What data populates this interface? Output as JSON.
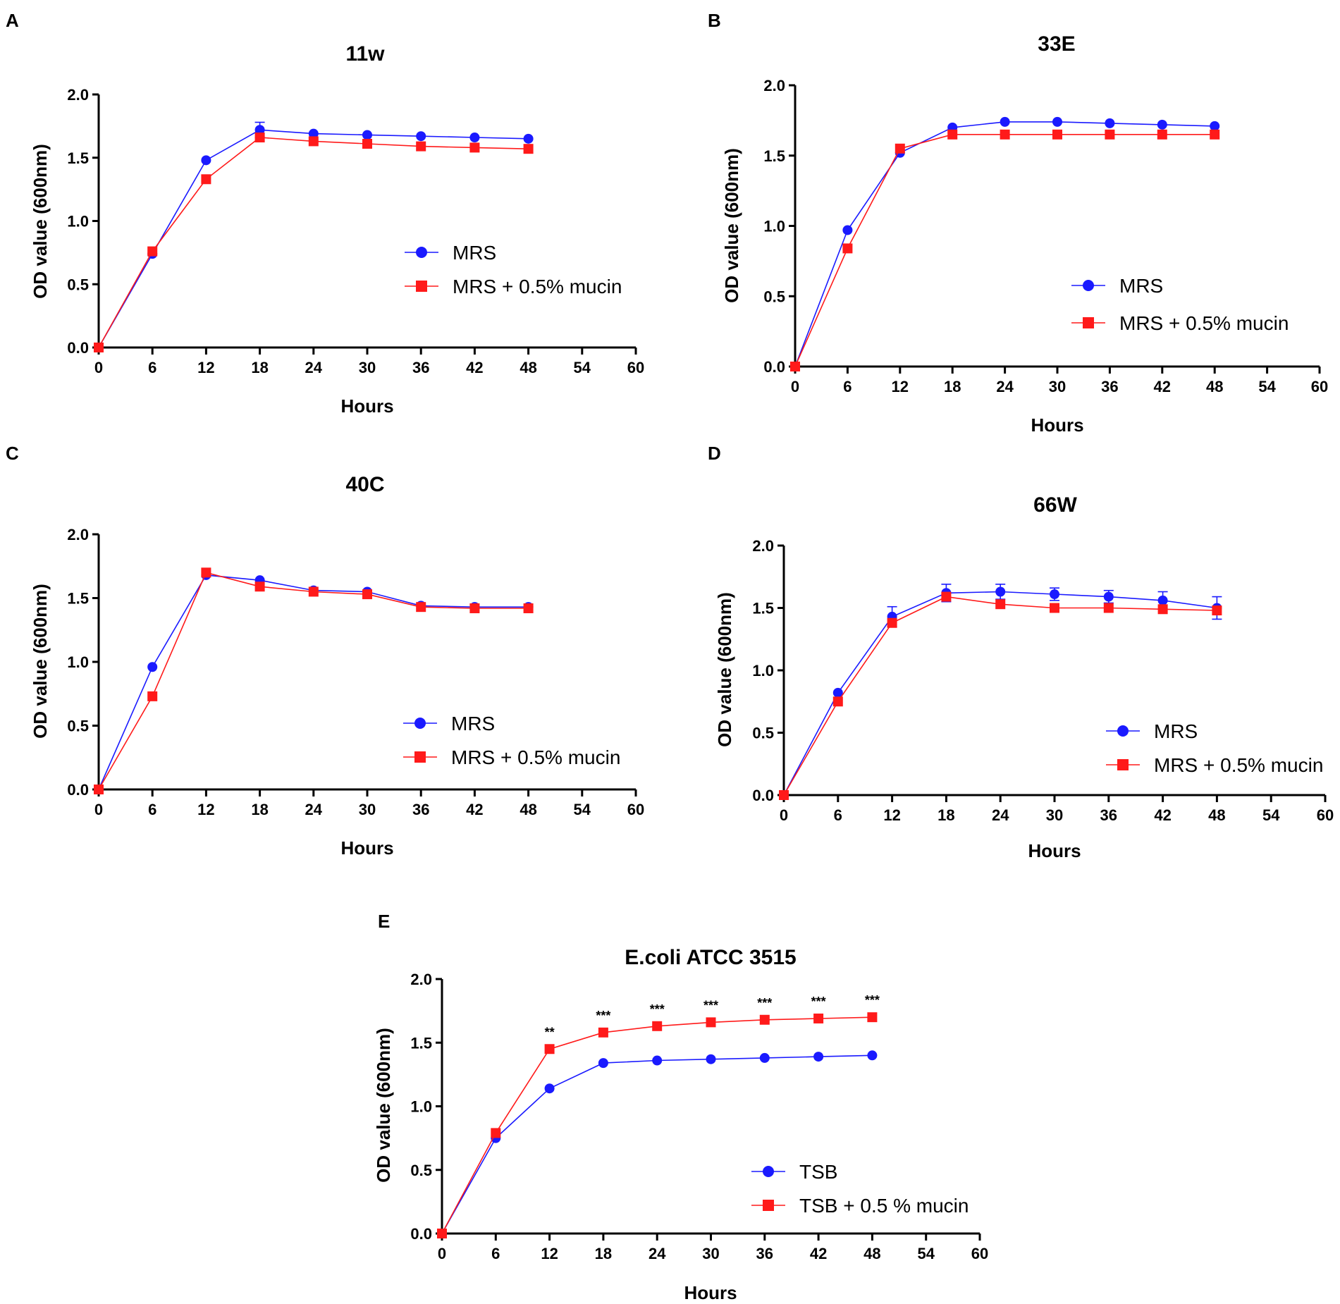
{
  "figure": {
    "panels": [
      "A",
      "B",
      "C",
      "D",
      "E"
    ]
  },
  "chart_data": [
    {
      "panel": "A",
      "type": "line",
      "title": "11w",
      "xlabel": "Hours",
      "ylabel": "OD value (600nm)",
      "xlim": [
        0,
        60
      ],
      "ylim": [
        0,
        2.0
      ],
      "xticks": [
        "0",
        "6",
        "12",
        "18",
        "24",
        "30",
        "36",
        "42",
        "48",
        "54",
        "60"
      ],
      "yticks": [
        "0.0",
        "0.5",
        "1.0",
        "1.5",
        "2.0"
      ],
      "x": [
        0,
        6,
        12,
        18,
        24,
        30,
        36,
        42,
        48
      ],
      "legend_position": "center-right",
      "series": [
        {
          "name": "MRS",
          "marker": "circle",
          "color": "#1a1aff",
          "values": [
            0.0,
            0.74,
            1.48,
            1.72,
            1.69,
            1.68,
            1.67,
            1.66,
            1.65
          ],
          "errors": [
            0,
            0,
            0,
            0.06,
            0,
            0,
            0,
            0,
            0
          ]
        },
        {
          "name": "MRS + 0.5% mucin",
          "marker": "square",
          "color": "#ff1a1a",
          "values": [
            0.0,
            0.76,
            1.33,
            1.66,
            1.63,
            1.61,
            1.59,
            1.58,
            1.57
          ],
          "errors": [
            0,
            0,
            0,
            0,
            0,
            0,
            0,
            0,
            0
          ]
        }
      ],
      "annotations": []
    },
    {
      "panel": "B",
      "type": "line",
      "title": "33E",
      "xlabel": "Hours",
      "ylabel": "OD value (600nm)",
      "xlim": [
        0,
        60
      ],
      "ylim": [
        0,
        2.0
      ],
      "xticks": [
        "0",
        "6",
        "12",
        "18",
        "24",
        "30",
        "36",
        "42",
        "48",
        "54",
        "60"
      ],
      "yticks": [
        "0.0",
        "0.5",
        "1.0",
        "1.5",
        "2.0"
      ],
      "x": [
        0,
        6,
        12,
        18,
        24,
        30,
        36,
        42,
        48
      ],
      "legend_position": "lower-right",
      "series": [
        {
          "name": "MRS",
          "marker": "circle",
          "color": "#1a1aff",
          "values": [
            0.0,
            0.97,
            1.52,
            1.7,
            1.74,
            1.74,
            1.73,
            1.72,
            1.71
          ],
          "errors": [
            0,
            0,
            0,
            0,
            0,
            0,
            0,
            0,
            0
          ]
        },
        {
          "name": "MRS + 0.5% mucin",
          "marker": "square",
          "color": "#ff1a1a",
          "values": [
            0.0,
            0.84,
            1.55,
            1.65,
            1.65,
            1.65,
            1.65,
            1.65,
            1.65
          ],
          "errors": [
            0,
            0,
            0,
            0,
            0,
            0,
            0,
            0,
            0
          ]
        }
      ],
      "annotations": []
    },
    {
      "panel": "C",
      "type": "line",
      "title": "40C",
      "xlabel": "Hours",
      "ylabel": "OD value (600nm)",
      "xlim": [
        0,
        60
      ],
      "ylim": [
        0,
        2.0
      ],
      "xticks": [
        "0",
        "6",
        "12",
        "18",
        "24",
        "30",
        "36",
        "42",
        "48",
        "54",
        "60"
      ],
      "yticks": [
        "0.0",
        "0.5",
        "1.0",
        "1.5",
        "2.0"
      ],
      "x": [
        0,
        6,
        12,
        18,
        24,
        30,
        36,
        42,
        48
      ],
      "legend_position": "lower-right",
      "series": [
        {
          "name": "MRS",
          "marker": "circle",
          "color": "#1a1aff",
          "values": [
            0.0,
            0.96,
            1.68,
            1.64,
            1.56,
            1.55,
            1.44,
            1.43,
            1.43
          ],
          "errors": [
            0,
            0,
            0,
            0,
            0,
            0,
            0,
            0,
            0
          ]
        },
        {
          "name": "MRS + 0.5% mucin",
          "marker": "square",
          "color": "#ff1a1a",
          "values": [
            0.0,
            0.73,
            1.7,
            1.59,
            1.55,
            1.53,
            1.43,
            1.42,
            1.42
          ],
          "errors": [
            0,
            0,
            0,
            0,
            0,
            0,
            0,
            0,
            0
          ]
        }
      ],
      "annotations": []
    },
    {
      "panel": "D",
      "type": "line",
      "title": "66W",
      "xlabel": "Hours",
      "ylabel": "OD value (600nm)",
      "xlim": [
        0,
        60
      ],
      "ylim": [
        0,
        2.0
      ],
      "xticks": [
        "0",
        "6",
        "12",
        "18",
        "24",
        "30",
        "36",
        "42",
        "48",
        "54",
        "60"
      ],
      "yticks": [
        "0.0",
        "0.5",
        "1.0",
        "1.5",
        "2.0"
      ],
      "x": [
        0,
        6,
        12,
        18,
        24,
        30,
        36,
        42,
        48
      ],
      "legend_position": "lower-right",
      "series": [
        {
          "name": "MRS",
          "marker": "circle",
          "color": "#1a1aff",
          "values": [
            0.0,
            0.82,
            1.43,
            1.62,
            1.63,
            1.61,
            1.59,
            1.56,
            1.5
          ],
          "errors": [
            0,
            0,
            0.08,
            0.07,
            0.06,
            0.05,
            0.05,
            0.07,
            0.09
          ]
        },
        {
          "name": "MRS + 0.5% mucin",
          "marker": "square",
          "color": "#ff1a1a",
          "values": [
            0.0,
            0.75,
            1.38,
            1.59,
            1.53,
            1.5,
            1.5,
            1.49,
            1.48
          ],
          "errors": [
            0,
            0,
            0,
            0,
            0,
            0,
            0,
            0,
            0
          ]
        }
      ],
      "annotations": []
    },
    {
      "panel": "E",
      "type": "line",
      "title": "E.coli ATCC 3515",
      "xlabel": "Hours",
      "ylabel": "OD value (600nm)",
      "xlim": [
        0,
        60
      ],
      "ylim": [
        0,
        2.0
      ],
      "xticks": [
        "0",
        "6",
        "12",
        "18",
        "24",
        "30",
        "36",
        "42",
        "48",
        "54",
        "60"
      ],
      "yticks": [
        "0.0",
        "0.5",
        "1.0",
        "1.5",
        "2.0"
      ],
      "x": [
        0,
        6,
        12,
        18,
        24,
        30,
        36,
        42,
        48
      ],
      "legend_position": "lower-right",
      "series": [
        {
          "name": "TSB",
          "marker": "circle",
          "color": "#1a1aff",
          "values": [
            0.0,
            0.75,
            1.14,
            1.34,
            1.36,
            1.37,
            1.38,
            1.39,
            1.4
          ],
          "errors": [
            0,
            0,
            0,
            0,
            0,
            0,
            0,
            0,
            0
          ]
        },
        {
          "name": "TSB + 0.5 % mucin",
          "marker": "square",
          "color": "#ff1a1a",
          "values": [
            0.0,
            0.79,
            1.45,
            1.58,
            1.63,
            1.66,
            1.68,
            1.69,
            1.7
          ],
          "errors": [
            0,
            0,
            0,
            0,
            0,
            0,
            0,
            0,
            0
          ]
        }
      ],
      "annotations": [
        {
          "x": 12,
          "text": "**"
        },
        {
          "x": 18,
          "text": "***"
        },
        {
          "x": 24,
          "text": "***"
        },
        {
          "x": 30,
          "text": "***"
        },
        {
          "x": 36,
          "text": "***"
        },
        {
          "x": 42,
          "text": "***"
        },
        {
          "x": 48,
          "text": "***"
        }
      ]
    }
  ]
}
